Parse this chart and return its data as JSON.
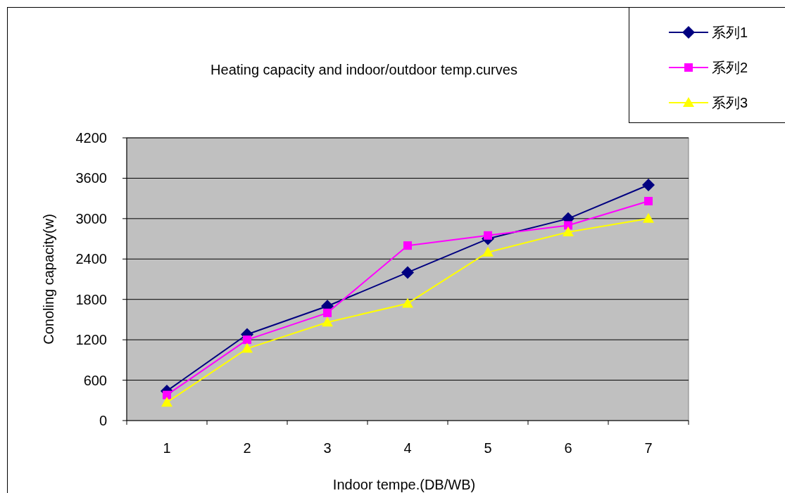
{
  "chart_data": {
    "type": "line",
    "title": "Heating capacity and indoor/outdoor temp.curves",
    "xlabel": "Indoor tempe.(DB/WB)",
    "ylabel": "Conoling capacity(w)",
    "categories": [
      "1",
      "2",
      "3",
      "4",
      "5",
      "6",
      "7"
    ],
    "series": [
      {
        "name": "系列1",
        "color": "#000080",
        "marker": "diamond",
        "values": [
          440,
          1280,
          1700,
          2200,
          2700,
          3000,
          3500
        ]
      },
      {
        "name": "系列2",
        "color": "#ff00ff",
        "marker": "square",
        "values": [
          380,
          1200,
          1600,
          2600,
          2750,
          2900,
          3260
        ]
      },
      {
        "name": "系列3",
        "color": "#ffff00",
        "marker": "triangle",
        "values": [
          270,
          1070,
          1460,
          1740,
          2500,
          2800,
          3000
        ]
      }
    ],
    "ylim": [
      0,
      4200
    ],
    "yticks": [
      0,
      600,
      1200,
      1800,
      2400,
      3000,
      3600,
      4200
    ],
    "grid": "y",
    "legend": "top right"
  }
}
